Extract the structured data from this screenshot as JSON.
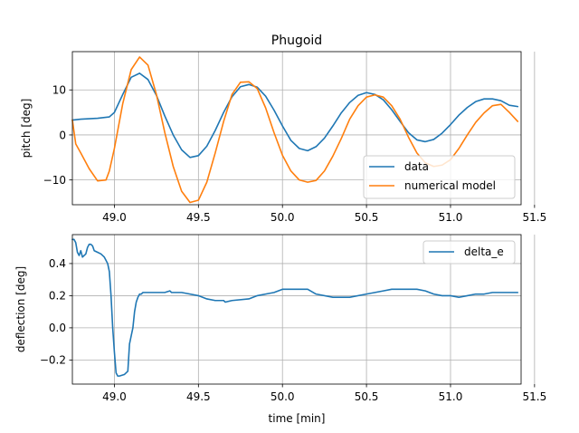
{
  "colors": {
    "data": "#1f77b4",
    "model": "#ff7f0e",
    "grid": "#b0b0b0"
  },
  "chart_data": [
    {
      "type": "line",
      "title": "Phugoid",
      "xlabel": "",
      "ylabel": "pitch [deg]",
      "xlim": [
        48.75,
        51.42
      ],
      "ylim": [
        -15.5,
        18.5
      ],
      "xticks": [
        49.0,
        49.5,
        50.0,
        50.5,
        51.0,
        51.5
      ],
      "xtick_labels": [
        "49.0",
        "49.5",
        "50.0",
        "50.5",
        "51.0",
        "51.5"
      ],
      "yticks": [
        10,
        0,
        -10
      ],
      "ytick_labels": [
        "10",
        "0",
        "−10"
      ],
      "grid": true,
      "legend_position": "lower-right",
      "series": [
        {
          "name": "data",
          "x": [
            48.75,
            48.8,
            48.9,
            48.97,
            49.0,
            49.05,
            49.1,
            49.15,
            49.2,
            49.25,
            49.3,
            49.35,
            49.4,
            49.45,
            49.5,
            49.55,
            49.6,
            49.65,
            49.7,
            49.75,
            49.8,
            49.85,
            49.9,
            49.95,
            50.0,
            50.05,
            50.1,
            50.15,
            50.2,
            50.25,
            50.3,
            50.35,
            50.4,
            50.45,
            50.5,
            50.55,
            50.6,
            50.65,
            50.7,
            50.75,
            50.8,
            50.85,
            50.9,
            50.95,
            51.0,
            51.05,
            51.1,
            51.15,
            51.2,
            51.25,
            51.3,
            51.35,
            51.4
          ],
          "values": [
            3.3,
            3.5,
            3.7,
            4.0,
            5.0,
            9.0,
            12.8,
            13.7,
            12.3,
            8.8,
            4.2,
            0.0,
            -3.3,
            -5.0,
            -4.6,
            -2.5,
            1.0,
            5.0,
            8.5,
            10.7,
            11.2,
            10.6,
            8.6,
            5.5,
            2.0,
            -1.2,
            -3.0,
            -3.5,
            -2.6,
            -0.7,
            2.0,
            4.9,
            7.2,
            8.8,
            9.4,
            9.0,
            7.8,
            5.6,
            3.0,
            0.5,
            -1.1,
            -1.5,
            -1.0,
            0.4,
            2.3,
            4.4,
            6.1,
            7.4,
            8.0,
            8.0,
            7.6,
            6.6,
            6.3
          ]
        },
        {
          "name": "numerical model",
          "x": [
            48.75,
            48.77,
            48.8,
            48.85,
            48.9,
            48.95,
            48.97,
            49.0,
            49.05,
            49.1,
            49.15,
            49.2,
            49.25,
            49.3,
            49.35,
            49.4,
            49.45,
            49.5,
            49.55,
            49.6,
            49.65,
            49.7,
            49.75,
            49.8,
            49.85,
            49.9,
            49.95,
            50.0,
            50.05,
            50.1,
            50.15,
            50.2,
            50.25,
            50.3,
            50.35,
            50.4,
            50.45,
            50.5,
            50.55,
            50.6,
            50.65,
            50.7,
            50.75,
            50.8,
            50.85,
            50.9,
            50.95,
            51.0,
            51.05,
            51.1,
            51.15,
            51.2,
            51.25,
            51.3,
            51.35,
            51.4
          ],
          "values": [
            3.3,
            -2.0,
            -4.0,
            -7.5,
            -10.2,
            -10.0,
            -8.0,
            -3.0,
            7.0,
            14.5,
            17.3,
            15.5,
            9.0,
            0.5,
            -7.0,
            -12.5,
            -15.0,
            -14.5,
            -10.5,
            -4.0,
            3.0,
            9.0,
            11.7,
            11.8,
            10.3,
            6.0,
            0.5,
            -4.5,
            -8.0,
            -10.0,
            -10.5,
            -10.1,
            -8.0,
            -4.7,
            -0.8,
            3.5,
            6.5,
            8.4,
            8.9,
            8.4,
            6.5,
            3.5,
            -0.5,
            -4.0,
            -6.2,
            -7.0,
            -6.7,
            -5.5,
            -3.0,
            0.0,
            2.8,
            4.9,
            6.5,
            6.8,
            5.0,
            3.0
          ]
        }
      ]
    },
    {
      "type": "line",
      "title": "",
      "xlabel": "time [min]",
      "ylabel": "deflection [deg]",
      "xlim": [
        48.75,
        51.42
      ],
      "ylim": [
        -0.35,
        0.58
      ],
      "xticks": [
        49.0,
        49.5,
        50.0,
        50.5,
        51.0,
        51.5
      ],
      "xtick_labels": [
        "49.0",
        "49.5",
        "50.0",
        "50.5",
        "51.0",
        "51.5"
      ],
      "yticks": [
        0.4,
        0.2,
        0.0,
        -0.2
      ],
      "ytick_labels": [
        "0.4",
        "0.2",
        "0.0",
        "−0.2"
      ],
      "grid": true,
      "legend_position": "upper-right",
      "series": [
        {
          "name": "delta_e",
          "x": [
            48.75,
            48.76,
            48.77,
            48.78,
            48.79,
            48.8,
            48.81,
            48.82,
            48.83,
            48.84,
            48.85,
            48.86,
            48.87,
            48.88,
            48.9,
            48.92,
            48.94,
            48.95,
            48.96,
            48.97,
            48.98,
            48.99,
            49.0,
            49.01,
            49.02,
            49.03,
            49.06,
            49.08,
            49.09,
            49.1,
            49.11,
            49.12,
            49.13,
            49.14,
            49.15,
            49.16,
            49.17,
            49.2,
            49.25,
            49.3,
            49.33,
            49.34,
            49.35,
            49.4,
            49.45,
            49.5,
            49.55,
            49.6,
            49.65,
            49.66,
            49.7,
            49.8,
            49.85,
            49.9,
            49.95,
            50.0,
            50.1,
            50.15,
            50.2,
            50.3,
            50.4,
            50.5,
            50.55,
            50.6,
            50.65,
            50.7,
            50.75,
            50.8,
            50.85,
            50.9,
            50.95,
            51.0,
            51.05,
            51.1,
            51.15,
            51.2,
            51.25,
            51.3,
            51.35,
            51.4
          ],
          "values": [
            0.55,
            0.55,
            0.53,
            0.47,
            0.45,
            0.48,
            0.44,
            0.45,
            0.46,
            0.5,
            0.52,
            0.52,
            0.51,
            0.48,
            0.47,
            0.46,
            0.44,
            0.42,
            0.4,
            0.35,
            0.2,
            0.0,
            -0.15,
            -0.28,
            -0.3,
            -0.3,
            -0.29,
            -0.27,
            -0.1,
            -0.05,
            0.0,
            0.1,
            0.16,
            0.19,
            0.21,
            0.21,
            0.22,
            0.22,
            0.22,
            0.22,
            0.23,
            0.22,
            0.22,
            0.22,
            0.21,
            0.2,
            0.18,
            0.17,
            0.17,
            0.16,
            0.17,
            0.18,
            0.2,
            0.21,
            0.22,
            0.24,
            0.24,
            0.24,
            0.21,
            0.19,
            0.19,
            0.21,
            0.22,
            0.23,
            0.24,
            0.24,
            0.24,
            0.24,
            0.23,
            0.21,
            0.2,
            0.2,
            0.19,
            0.2,
            0.21,
            0.21,
            0.22,
            0.22,
            0.22,
            0.22
          ]
        }
      ]
    }
  ]
}
